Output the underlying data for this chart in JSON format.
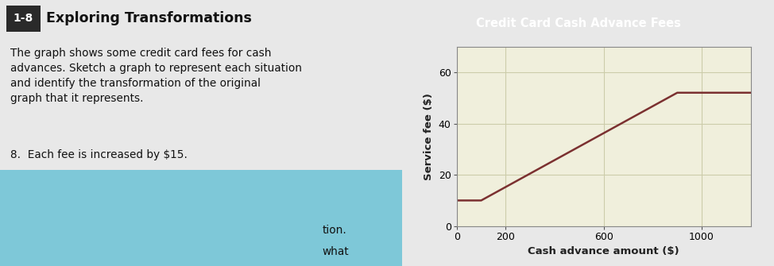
{
  "title": "Credit Card Cash Advance Fees",
  "title_bg_color": "#c9a84c",
  "title_text_color": "#ffffff",
  "xlabel": "Cash advance amount ($)",
  "ylabel": "Service fee ($)",
  "xlim": [
    0,
    1200
  ],
  "ylim": [
    0,
    70
  ],
  "xticks": [
    0,
    200,
    600,
    1000
  ],
  "yticks": [
    0,
    20,
    40,
    60
  ],
  "line_x": [
    0,
    100,
    900,
    1200
  ],
  "line_y": [
    10,
    10,
    52,
    52
  ],
  "line_color": "#7b3030",
  "line_width": 1.8,
  "grid_color": "#ccccaa",
  "plot_bg_color": "#f0efdc",
  "outer_bg_color": "#e8e8e8",
  "border_color": "#888888",
  "label_title": "1-8",
  "text_left_title": "Exploring Transformations",
  "text_body": "The graph shows some credit card fees for cash\nadvances. Sketch a graph to represent each situation\nand identify the transformation of the original\ngraph that it represents.",
  "text_item8": "8.  Each fee is increased by $15.",
  "left_bg_color": "#f0f0f0",
  "cyan_bg_color": "#7ec8d8",
  "fig_width": 9.74,
  "fig_height": 3.35,
  "dpi": 100
}
